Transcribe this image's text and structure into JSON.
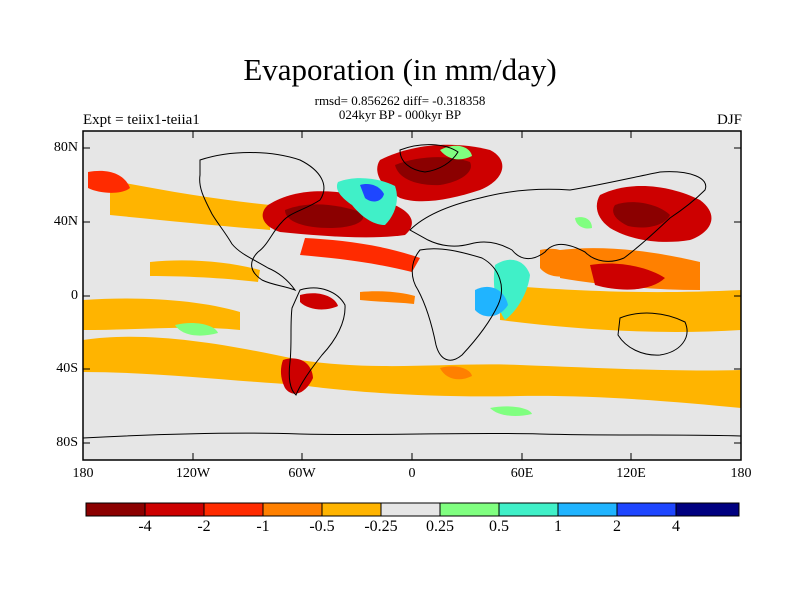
{
  "title": "Evaporation (in mm/day)",
  "stats_line1": "rmsd= 0.856262 diff= -0.318358",
  "stats_line2": "024kyr BP - 000kyr BP",
  "left_label": "Expt = teiix1-teiia1",
  "right_label": "DJF",
  "map": {
    "lat_ticks": [
      "80N",
      "40N",
      "0",
      "40S",
      "80S"
    ],
    "lon_ticks": [
      "180",
      "120W",
      "60W",
      "0",
      "60E",
      "120E",
      "180"
    ],
    "background_color": "#e6e6e6"
  },
  "colorbar": {
    "colors": [
      "#8b0000",
      "#cd0000",
      "#ff2b00",
      "#ff8000",
      "#ffb400",
      "#e6e6e6",
      "#80ff80",
      "#40f0c8",
      "#20b4ff",
      "#1e46ff",
      "#000080"
    ],
    "labels": [
      "-4",
      "-2",
      "-1",
      "-0.5",
      "-0.25",
      "0.25",
      "0.5",
      "1",
      "2",
      "4"
    ]
  }
}
